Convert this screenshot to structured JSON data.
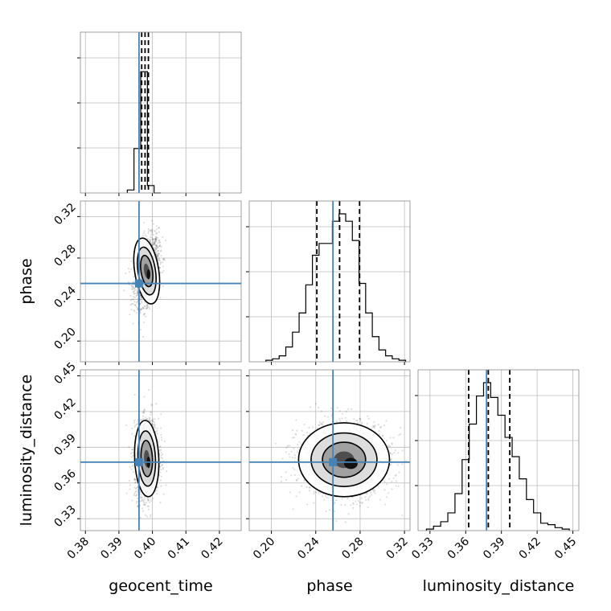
{
  "chart_data": {
    "type": "corner",
    "parameters": [
      "geocent_time",
      "phase",
      "luminosity_distance"
    ],
    "truths": {
      "geocent_time": 0.396,
      "phase": 0.2555,
      "luminosity_distance": 0.3775
    },
    "truth_color": "#4682b4",
    "grid": true,
    "panels": [
      {
        "id": "hist-geocent_time",
        "type": "histogram",
        "x": "geocent_time",
        "xlim": [
          0.3785,
          0.4265
        ],
        "quantiles": [
          0.3968,
          0.3978,
          0.3988
        ],
        "bins": {
          "edges": [
            0.3925,
            0.3945,
            0.3965,
            0.3985,
            0.4005,
            0.4025
          ],
          "counts": [
            0.02,
            0.3,
            0.82,
            0.05,
            0.0
          ]
        }
      },
      {
        "id": "hist-phase",
        "type": "histogram",
        "x": "phase",
        "xlim": [
          0.18,
          0.325
        ],
        "quantiles": [
          0.241,
          0.2615,
          0.2795
        ],
        "bins": {
          "edges": [
            0.195,
            0.201,
            0.207,
            0.213,
            0.219,
            0.225,
            0.231,
            0.237,
            0.243,
            0.249,
            0.255,
            0.261,
            0.267,
            0.273,
            0.279,
            0.285,
            0.291,
            0.297,
            0.303,
            0.309,
            0.315,
            0.321
          ],
          "counts": [
            0.01,
            0.02,
            0.04,
            0.1,
            0.2,
            0.33,
            0.52,
            0.72,
            0.8,
            0.8,
            0.95,
            1.0,
            0.95,
            0.82,
            0.53,
            0.33,
            0.17,
            0.08,
            0.04,
            0.02,
            0.01
          ]
        }
      },
      {
        "id": "hist-luminosity_distance",
        "type": "histogram",
        "x": "luminosity_distance",
        "xlim": [
          0.32,
          0.455
        ],
        "quantiles": [
          0.3625,
          0.379,
          0.397
        ],
        "bins": {
          "edges": [
            0.327,
            0.333,
            0.339,
            0.345,
            0.351,
            0.357,
            0.363,
            0.369,
            0.375,
            0.381,
            0.387,
            0.393,
            0.399,
            0.405,
            0.411,
            0.417,
            0.423,
            0.429,
            0.435,
            0.441,
            0.447
          ],
          "counts": [
            0.01,
            0.03,
            0.06,
            0.12,
            0.25,
            0.48,
            0.72,
            0.91,
            1.0,
            0.9,
            0.78,
            0.63,
            0.5,
            0.35,
            0.21,
            0.12,
            0.05,
            0.04,
            0.02,
            0.01
          ]
        }
      },
      {
        "id": "scatter-geocent-phase",
        "type": "2d",
        "x": "geocent_time",
        "y": "phase",
        "xlim": [
          0.3785,
          0.4265
        ],
        "ylim": [
          0.18,
          0.335
        ],
        "center": [
          0.3983,
          0.2675
        ],
        "sigma": [
          0.0018,
          0.016
        ],
        "rho": 0.35
      },
      {
        "id": "scatter-geocent-luminosity",
        "type": "2d",
        "x": "geocent_time",
        "y": "luminosity_distance",
        "xlim": [
          0.3785,
          0.4265
        ],
        "ylim": [
          0.32,
          0.455
        ],
        "center": [
          0.3983,
          0.3805
        ],
        "sigma": [
          0.0018,
          0.016
        ],
        "rho": 0.1
      },
      {
        "id": "scatter-phase-luminosity",
        "type": "2d",
        "x": "phase",
        "y": "luminosity_distance",
        "xlim": [
          0.18,
          0.325
        ],
        "ylim": [
          0.32,
          0.455
        ],
        "center": [
          0.2655,
          0.3795
        ],
        "sigma": [
          0.0205,
          0.0155
        ],
        "rho": 0.0
      }
    ],
    "ticks": {
      "geocent_time": [
        "0.38",
        "0.39",
        "0.40",
        "0.41",
        "0.42"
      ],
      "phase": [
        "0.20",
        "0.24",
        "0.28",
        "0.32"
      ],
      "luminosity_distance": [
        "0.33",
        "0.36",
        "0.39",
        "0.42",
        "0.45"
      ]
    },
    "labels": {
      "xlabel_col1": "geocent_time",
      "xlabel_col2": "phase",
      "xlabel_col3": "luminosity_distance",
      "ylabel_row2": "phase",
      "ylabel_row3": "luminosity_distance"
    }
  }
}
